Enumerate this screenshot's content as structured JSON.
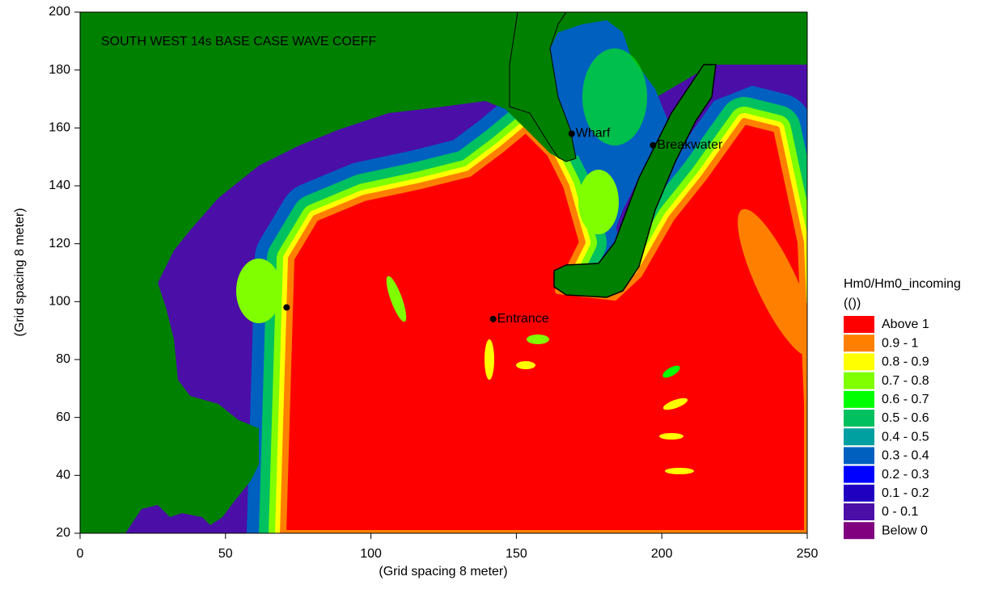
{
  "chart_data": {
    "type": "contour",
    "title": "SOUTH WEST 14s BASE CASE WAVE COEFF",
    "x_label": "(Grid spacing 8 meter)",
    "y_label": "(Grid spacing 8 meter)",
    "xlim": [
      0,
      250
    ],
    "ylim": [
      20,
      200
    ],
    "xticks": [
      0,
      50,
      100,
      150,
      200,
      250
    ],
    "yticks": [
      20,
      40,
      60,
      80,
      100,
      120,
      140,
      160,
      180,
      200
    ],
    "legend": {
      "title": "Hm0/Hm0_incoming",
      "unit": "(())",
      "levels": [
        {
          "label": "Above   1",
          "color": "#ff0000"
        },
        {
          "label": "0.9 -   1",
          "color": "#ff8000"
        },
        {
          "label": "0.8 - 0.9",
          "color": "#ffff00"
        },
        {
          "label": "0.7 - 0.8",
          "color": "#80ff00"
        },
        {
          "label": "0.6 - 0.7",
          "color": "#00ff00"
        },
        {
          "label": "0.5 - 0.6",
          "color": "#00c060"
        },
        {
          "label": "0.4 - 0.5",
          "color": "#00a0a0"
        },
        {
          "label": "0.3 - 0.4",
          "color": "#0060c0"
        },
        {
          "label": "0.2 - 0.3",
          "color": "#0000ff"
        },
        {
          "label": "0.1 - 0.2",
          "color": "#2000c0"
        },
        {
          "label": "0 - 0.1",
          "color": "#4b0fa8"
        },
        {
          "label": "Below   0",
          "color": "#800080"
        }
      ]
    },
    "points": [
      {
        "label": "Wharf",
        "x": 169,
        "y": 158
      },
      {
        "label": "Breakwater",
        "x": 197,
        "y": 154
      },
      {
        "label": "Entrance",
        "x": 142,
        "y": 94
      },
      {
        "x": 71,
        "y": 98
      }
    ]
  }
}
